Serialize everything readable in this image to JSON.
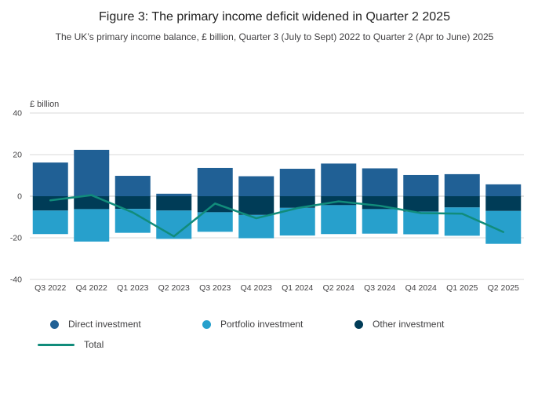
{
  "chart_data": {
    "type": "bar",
    "stacked": true,
    "title": "Figure 3: The primary income deficit widened in Quarter 2 2025",
    "subtitle": "The UK’s primary income balance, £ billion, Quarter 3 (July to Sept) 2022 to Quarter 2 (Apr to June) 2025",
    "unit_label": "£ billion",
    "categories": [
      "Q3 2022",
      "Q4 2022",
      "Q1 2023",
      "Q2 2023",
      "Q3 2023",
      "Q4 2023",
      "Q1 2024",
      "Q2 2024",
      "Q3 2024",
      "Q4 2024",
      "Q1 2025",
      "Q2 2025"
    ],
    "series": [
      {
        "id": "direct-investment",
        "name": "Direct investment",
        "color": "#206095",
        "values": [
          16.2,
          22.3,
          9.8,
          1.2,
          13.6,
          9.6,
          13.2,
          15.7,
          13.4,
          10.2,
          10.6,
          5.7
        ]
      },
      {
        "id": "portfolio-investment",
        "name": "Portfolio investment",
        "color": "#27A0CC",
        "values": [
          -11.3,
          -15.6,
          -11.5,
          -13.6,
          -9.4,
          -11.2,
          -13.3,
          -13.9,
          -11.8,
          -10.9,
          -13.6,
          -15.8
        ]
      },
      {
        "id": "other-investment",
        "name": "Other investment",
        "color": "#003C57",
        "values": [
          -6.9,
          -6.2,
          -6.1,
          -6.9,
          -7.7,
          -9.0,
          -5.6,
          -4.3,
          -6.2,
          -7.4,
          -5.4,
          -7.1
        ]
      }
    ],
    "stack_order": [
      0,
      2,
      1
    ],
    "line_series": {
      "id": "total",
      "name": "Total",
      "color": "#118C7B",
      "values": [
        -2.0,
        0.5,
        -7.8,
        -19.3,
        -3.5,
        -10.6,
        -5.7,
        -2.5,
        -4.6,
        -8.1,
        -8.4,
        -17.2
      ]
    },
    "ylim": [
      -40,
      40
    ],
    "yticks": [
      40,
      20,
      0,
      -20,
      -40
    ],
    "grid": true,
    "legend_position": "bottom"
  }
}
